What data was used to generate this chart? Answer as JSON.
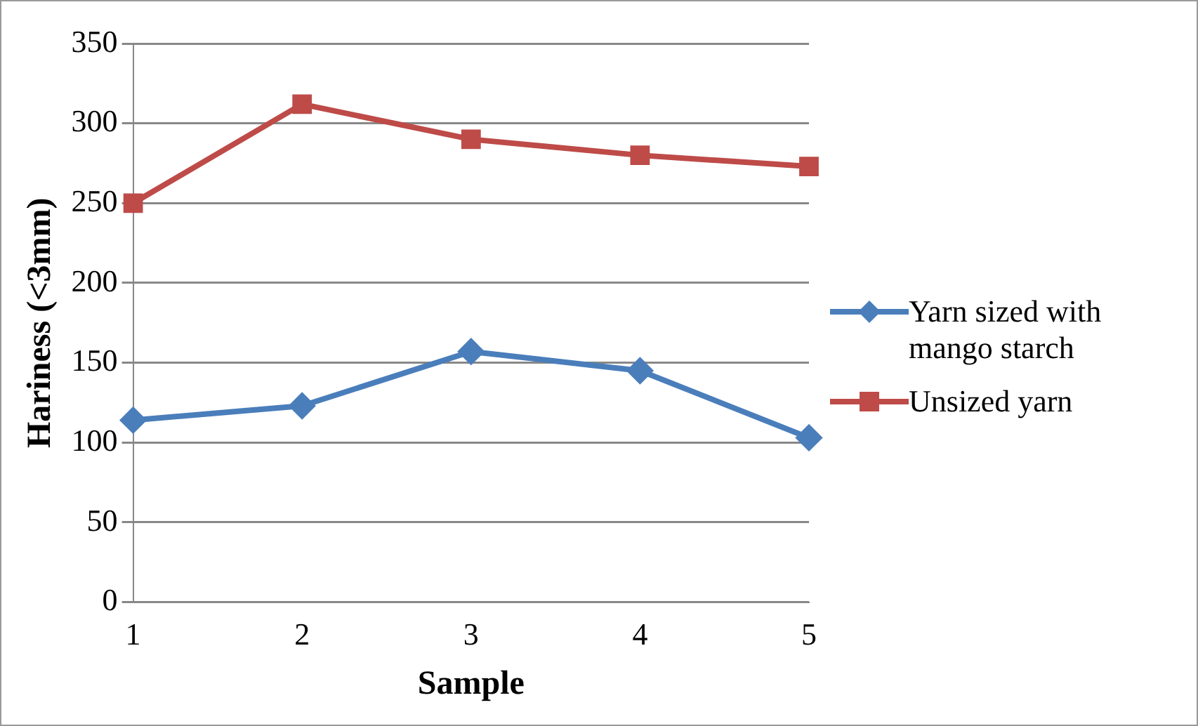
{
  "chart_data": {
    "type": "line",
    "xlabel": "Sample",
    "ylabel": "Hariness (<3mm)",
    "categories": [
      "1",
      "2",
      "3",
      "4",
      "5"
    ],
    "series": [
      {
        "name": "Yarn sized with mango starch",
        "color": "#4a7ebb",
        "marker": "diamond",
        "values": [
          114,
          123,
          157,
          145,
          103
        ]
      },
      {
        "name": "Unsized yarn",
        "color": "#be4b48",
        "marker": "square",
        "values": [
          250,
          312,
          290,
          280,
          273
        ]
      }
    ],
    "ylim": [
      0,
      350
    ],
    "yticks": [
      0,
      50,
      100,
      150,
      200,
      250,
      300,
      350
    ],
    "grid": "y",
    "legend": "right"
  }
}
